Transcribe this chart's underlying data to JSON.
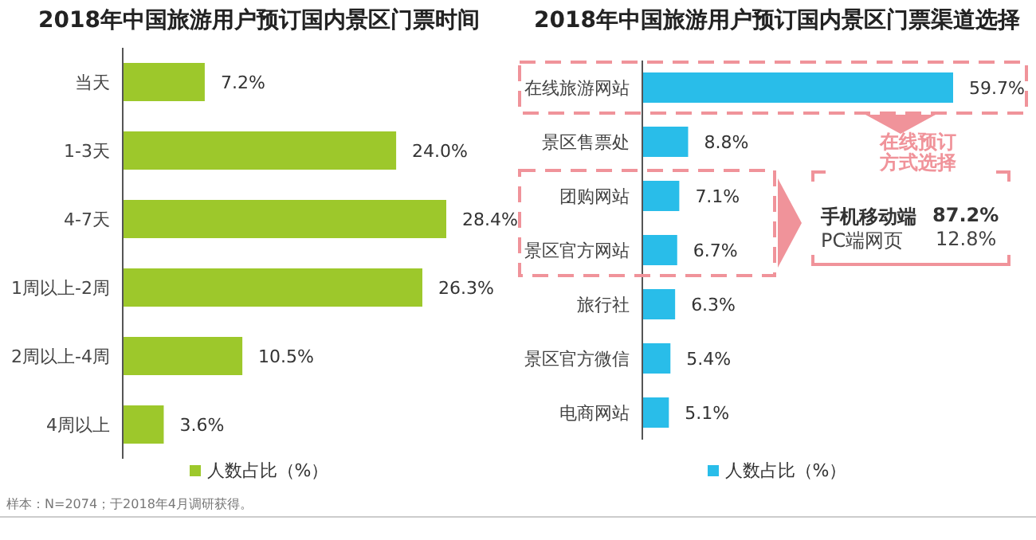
{
  "chart_data": [
    {
      "type": "bar",
      "orientation": "horizontal",
      "title": "2018年中国旅游用户预订国内景区门票时间",
      "categories": [
        "当天",
        "1-3天",
        "4-7天",
        "1周以上-2周",
        "2周以上-4周",
        "4周以上"
      ],
      "series": [
        {
          "name": "人数占比（%）",
          "color": "#9dc82b",
          "values": [
            7.2,
            24.0,
            28.4,
            26.3,
            10.5,
            3.6
          ],
          "value_labels": [
            "7.2%",
            "24.0%",
            "28.4%",
            "26.3%",
            "10.5%",
            "3.6%"
          ]
        }
      ],
      "legend": "bottom",
      "grid": false,
      "annotations": [
        "样本：N=2074；于2018年4月调研获得。"
      ]
    },
    {
      "type": "bar",
      "orientation": "horizontal",
      "title": "2018年中国旅游用户预订国内景区门票渠道选择",
      "categories": [
        "在线旅游网站",
        "景区售票处",
        "团购网站",
        "景区官方网站",
        "旅行社",
        "景区官方微信",
        "电商网站"
      ],
      "series": [
        {
          "name": "人数占比（%）",
          "color": "#29bde9",
          "values": [
            59.7,
            8.8,
            7.1,
            6.7,
            6.3,
            5.4,
            5.1
          ],
          "value_labels": [
            "59.7%",
            "8.8%",
            "7.1%",
            "6.7%",
            "6.3%",
            "5.4%",
            "5.1%"
          ]
        }
      ],
      "legend": "bottom",
      "grid": false,
      "annotations": [
        "在线预订方式选择",
        "手机移动端",
        "87.2%",
        "PC端网页",
        "12.8%"
      ]
    }
  ]
}
